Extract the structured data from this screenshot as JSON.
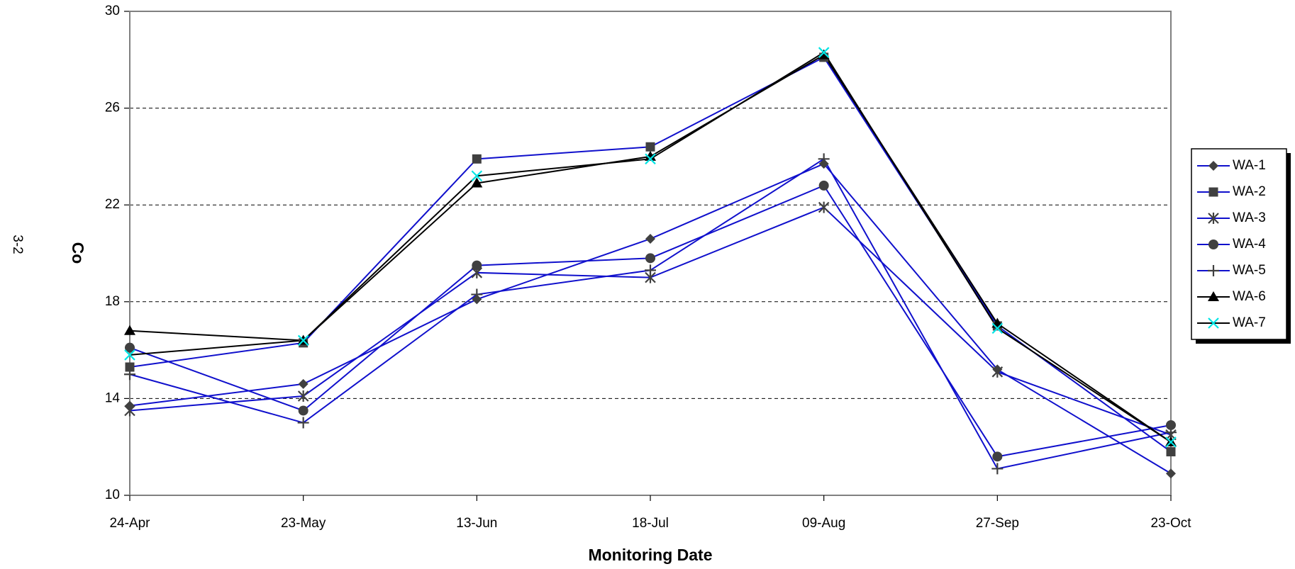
{
  "chart_data": {
    "type": "line",
    "page_label": "3-2",
    "x_label": "Monitoring Date",
    "y_label": "Co",
    "categories": [
      "24-Apr",
      "23-May",
      "13-Jun",
      "18-Jul",
      "09-Aug",
      "27-Sep",
      "23-Oct"
    ],
    "ylim": [
      10,
      30
    ],
    "yticks": [
      10,
      14,
      18,
      22,
      26,
      30
    ],
    "grid": true,
    "legend": "right",
    "series": [
      {
        "name": "WA-1",
        "color": "#1010cc",
        "marker": "diamond",
        "marker_color": "#404040",
        "values": [
          13.7,
          14.6,
          18.1,
          20.6,
          23.7,
          15.2,
          10.9
        ]
      },
      {
        "name": "WA-2",
        "color": "#1010cc",
        "marker": "square",
        "marker_color": "#404040",
        "values": [
          15.3,
          16.3,
          23.9,
          24.4,
          28.1,
          17.0,
          11.8
        ]
      },
      {
        "name": "WA-3",
        "color": "#1010cc",
        "marker": "star",
        "marker_color": "#404040",
        "values": [
          13.5,
          14.1,
          19.2,
          19.0,
          21.9,
          15.1,
          12.5
        ]
      },
      {
        "name": "WA-4",
        "color": "#1010cc",
        "marker": "circle",
        "marker_color": "#404040",
        "values": [
          16.1,
          13.5,
          19.5,
          19.8,
          22.8,
          11.6,
          12.9
        ]
      },
      {
        "name": "WA-5",
        "color": "#1010cc",
        "marker": "plus",
        "marker_color": "#404040",
        "values": [
          15.0,
          13.0,
          18.3,
          19.3,
          23.9,
          11.1,
          12.6
        ]
      },
      {
        "name": "WA-6",
        "color": "#000000",
        "marker": "triangle",
        "marker_color": "#000000",
        "values": [
          16.8,
          16.4,
          22.9,
          24.0,
          28.2,
          17.1,
          12.2
        ]
      },
      {
        "name": "WA-7",
        "color": "#000000",
        "marker": "x",
        "marker_color": "#00e5e5",
        "values": [
          15.8,
          16.4,
          23.2,
          23.9,
          28.3,
          16.9,
          12.2
        ]
      }
    ]
  }
}
